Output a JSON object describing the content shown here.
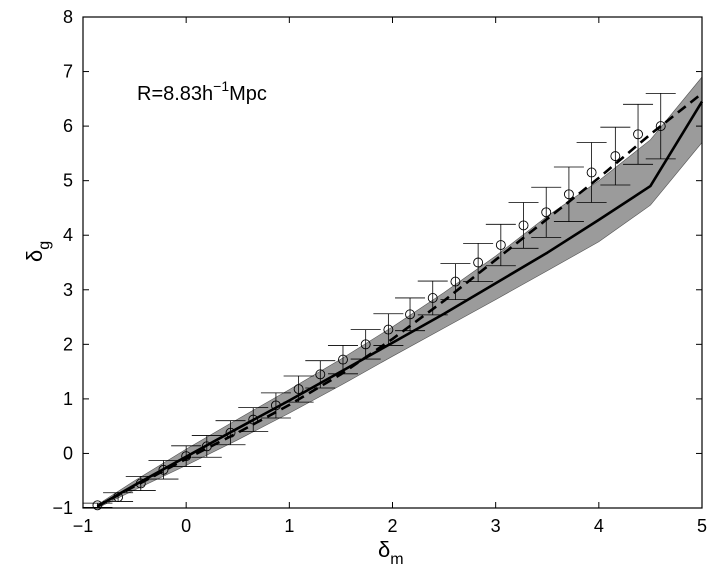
{
  "chart_data": {
    "type": "line",
    "annotation": {
      "prefix": "R=8.83h",
      "superscript": "−1",
      "suffix": "Mpc"
    },
    "xlabel": {
      "symbol": "δ",
      "subscript": "m"
    },
    "ylabel": {
      "symbol": "δ",
      "subscript": "g"
    },
    "xlim": [
      -1,
      5
    ],
    "ylim": [
      -1,
      8
    ],
    "xticks": [
      -1,
      0,
      1,
      2,
      3,
      4,
      5
    ],
    "yticks": [
      -1,
      0,
      1,
      2,
      3,
      4,
      5,
      6,
      7,
      8
    ],
    "grid": false,
    "series": [
      {
        "style": "solid",
        "x": [
          -0.86,
          -0.5,
          0.0,
          0.5,
          1.0,
          1.5,
          2.0,
          2.5,
          3.0,
          3.5,
          4.0,
          4.5,
          5.0
        ],
        "y": [
          -0.97,
          -0.58,
          -0.06,
          0.46,
          0.97,
          1.5,
          2.03,
          2.56,
          3.12,
          3.68,
          4.28,
          4.9,
          6.45
        ]
      },
      {
        "style": "dashed",
        "x": [
          -0.86,
          -0.5,
          0.0,
          0.5,
          1.0,
          1.5,
          2.0,
          2.5,
          3.0,
          3.5,
          4.0,
          4.5,
          5.0
        ],
        "y": [
          -0.97,
          -0.6,
          -0.1,
          0.38,
          0.89,
          1.45,
          2.1,
          2.8,
          3.55,
          4.3,
          5.05,
          5.85,
          6.6
        ]
      }
    ],
    "band": {
      "x": [
        -0.86,
        -0.5,
        0.0,
        0.5,
        1.0,
        1.5,
        2.0,
        2.5,
        3.0,
        3.5,
        4.0,
        4.5,
        5.0
      ],
      "lower": [
        -1.0,
        -0.67,
        -0.22,
        0.25,
        0.74,
        1.25,
        1.78,
        2.3,
        2.82,
        3.35,
        3.88,
        4.55,
        5.7
      ],
      "upper": [
        -0.94,
        -0.5,
        0.08,
        0.63,
        1.17,
        1.73,
        2.32,
        2.95,
        3.62,
        4.35,
        5.0,
        5.75,
        6.9
      ]
    },
    "points": {
      "marker": "open-circle",
      "x": [
        -0.86,
        -0.66,
        -0.44,
        -0.22,
        0.0,
        0.2,
        0.43,
        0.65,
        0.87,
        1.09,
        1.3,
        1.52,
        1.74,
        1.96,
        2.17,
        2.39,
        2.61,
        2.83,
        3.05,
        3.27,
        3.49,
        3.71,
        3.93,
        4.16,
        4.38,
        4.6
      ],
      "y": [
        -0.95,
        -0.8,
        -0.55,
        -0.3,
        -0.05,
        0.13,
        0.38,
        0.62,
        0.88,
        1.18,
        1.45,
        1.72,
        2.0,
        2.27,
        2.55,
        2.85,
        3.15,
        3.5,
        3.82,
        4.18,
        4.42,
        4.75,
        5.15,
        5.45,
        5.85,
        6.0
      ],
      "err": [
        0.04,
        0.08,
        0.13,
        0.17,
        0.19,
        0.2,
        0.22,
        0.22,
        0.23,
        0.24,
        0.25,
        0.26,
        0.27,
        0.29,
        0.3,
        0.31,
        0.33,
        0.35,
        0.38,
        0.42,
        0.46,
        0.5,
        0.55,
        0.53,
        0.55,
        0.6
      ]
    }
  }
}
